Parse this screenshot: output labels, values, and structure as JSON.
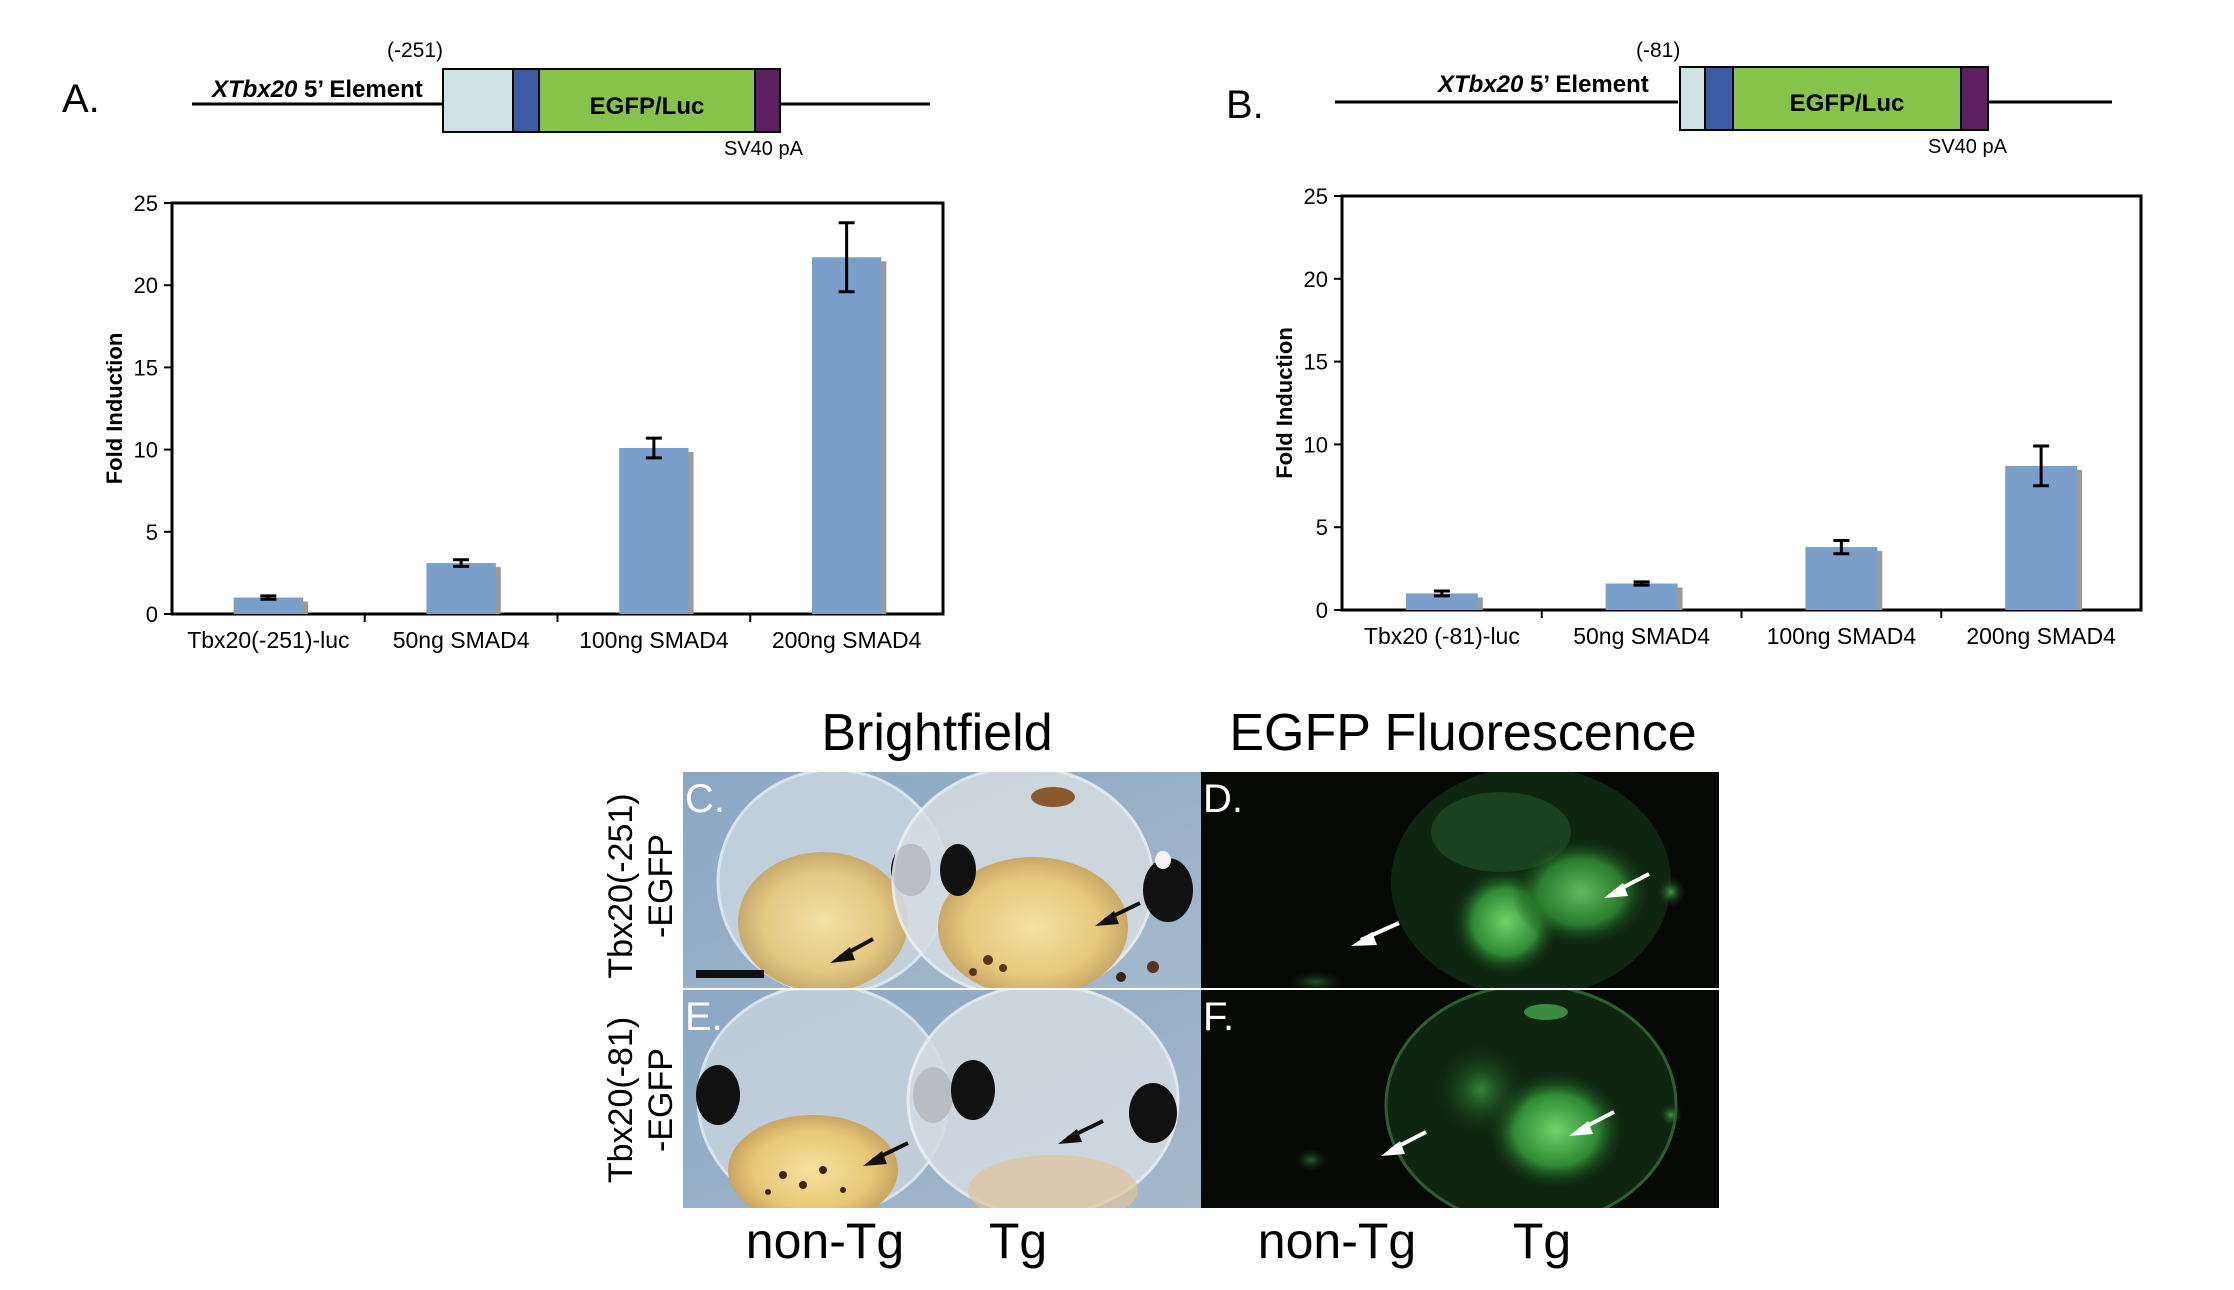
{
  "panel_a": {
    "letter": "A.",
    "construct": {
      "position": "(-251)",
      "element_italic": "XTbx20",
      "element_rest": " 5’ Element",
      "reporter": "EGFP/Luc",
      "polya": "SV40 pA"
    }
  },
  "panel_b": {
    "letter": "B.",
    "construct": {
      "position": "(-81)",
      "element_italic": "XTbx20",
      "element_rest": " 5’ Element",
      "reporter": "EGFP/Luc",
      "polya": "SV40 pA"
    }
  },
  "chart_data": [
    {
      "type": "bar",
      "ylabel": "Fold Induction",
      "ylim": [
        0,
        25
      ],
      "yticks": [
        0,
        5,
        10,
        15,
        20,
        25
      ],
      "categories": [
        "Tbx20(-251)-luc",
        "50ng SMAD4",
        "100ng SMAD4",
        "200ng SMAD4"
      ],
      "values": [
        1.0,
        3.1,
        10.1,
        21.7
      ],
      "errors": [
        0.1,
        0.2,
        0.6,
        2.1
      ],
      "bar_color": "#7a9fcb",
      "grid": false
    },
    {
      "type": "bar",
      "ylabel": "Fold Induction",
      "ylim": [
        0,
        25
      ],
      "yticks": [
        0,
        5,
        10,
        15,
        20,
        25
      ],
      "categories": [
        "Tbx20 (-81)-luc",
        "50ng SMAD4",
        "100ng SMAD4",
        "200ng SMAD4"
      ],
      "values": [
        1.0,
        1.6,
        3.8,
        8.7
      ],
      "errors": [
        0.15,
        0.1,
        0.4,
        1.2
      ],
      "bar_color": "#7a9fcb",
      "grid": false
    }
  ],
  "microscopy": {
    "header_brightfield": "Brightfield",
    "header_fluorescence": "EGFP Fluorescence",
    "row1_label_line1": "Tbx20(-251)",
    "row1_label_line2": "-EGFP",
    "row2_label_line1": "Tbx20(-81)",
    "row2_label_line2": "-EGFP",
    "panel_c": "C.",
    "panel_d": "D.",
    "panel_e": "E.",
    "panel_f": "F.",
    "bf_non_tg": "non-Tg",
    "bf_tg": "Tg",
    "fl_non_tg": "non-Tg",
    "fl_tg": "Tg"
  }
}
